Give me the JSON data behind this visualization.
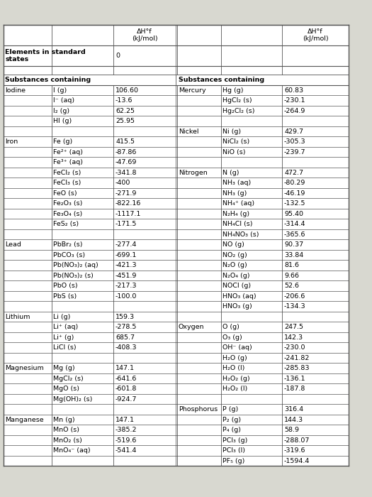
{
  "bg_color": "#d8d8d0",
  "table_bg": "#ffffff",
  "font_size": 6.8,
  "bold_font_size": 6.8,
  "left_data": [
    [
      "Iodine",
      "I (g)",
      "106.60"
    ],
    [
      "",
      "I⁻ (aq)",
      "-13.6"
    ],
    [
      "",
      "I₂ (g)",
      "62.25"
    ],
    [
      "",
      "HI (g)",
      "25.95"
    ],
    [
      "",
      "",
      ""
    ],
    [
      "Iron",
      "Fe (g)",
      "415.5"
    ],
    [
      "",
      "Fe²⁺ (aq)",
      "-87.86"
    ],
    [
      "",
      "Fe³⁺ (aq)",
      "-47.69"
    ],
    [
      "",
      "FeCl₂ (s)",
      "-341.8"
    ],
    [
      "",
      "FeCl₃ (s)",
      "-400"
    ],
    [
      "",
      "FeO (s)",
      "-271.9"
    ],
    [
      "",
      "Fe₂O₃ (s)",
      "-822.16"
    ],
    [
      "",
      "Fe₃O₄ (s)",
      "-1117.1"
    ],
    [
      "",
      "FeS₂ (s)",
      "-171.5"
    ],
    [
      "",
      "",
      ""
    ],
    [
      "Lead",
      "PbBr₂ (s)",
      "-277.4"
    ],
    [
      "",
      "PbCO₃ (s)",
      "-699.1"
    ],
    [
      "",
      "Pb(NO₃)₂ (aq)",
      "-421.3"
    ],
    [
      "",
      "Pb(NO₃)₂ (s)",
      "-451.9"
    ],
    [
      "",
      "PbO (s)",
      "-217.3"
    ],
    [
      "",
      "PbS (s)",
      "-100.0"
    ],
    [
      "",
      "",
      ""
    ],
    [
      "Lithium",
      "Li (g)",
      "159.3"
    ],
    [
      "",
      "Li⁺ (aq)",
      "-278.5"
    ],
    [
      "",
      "Li⁺ (g)",
      "685.7"
    ],
    [
      "",
      "LiCl (s)",
      "-408.3"
    ],
    [
      "",
      "",
      ""
    ],
    [
      "Magnesium",
      "Mg (g)",
      "147.1"
    ],
    [
      "",
      "MgCl₂ (s)",
      "-641.6"
    ],
    [
      "",
      "MgO (s)",
      "-601.8"
    ],
    [
      "",
      "Mg(OH)₂ (s)",
      "-924.7"
    ],
    [
      "",
      "",
      ""
    ],
    [
      "Manganese",
      "Mn (g)",
      "147.1"
    ],
    [
      "",
      "MnO (s)",
      "-385.2"
    ],
    [
      "",
      "MnO₂ (s)",
      "-519.6"
    ],
    [
      "",
      "MnO₄⁻ (aq)",
      "-541.4"
    ],
    [
      "",
      "",
      ""
    ]
  ],
  "right_data": [
    [
      "Mercury",
      "Hg (g)",
      "60.83"
    ],
    [
      "",
      "HgCl₂ (s)",
      "-230.1"
    ],
    [
      "",
      "Hg₂Cl₂ (s)",
      "-264.9"
    ],
    [
      "",
      "",
      ""
    ],
    [
      "Nickel",
      "Ni (g)",
      "429.7"
    ],
    [
      "",
      "NiCl₂ (s)",
      "-305.3"
    ],
    [
      "",
      "NiO (s)",
      "-239.7"
    ],
    [
      "",
      "",
      ""
    ],
    [
      "Nitrogen",
      "N (g)",
      "472.7"
    ],
    [
      "",
      "NH₃ (aq)",
      "-80.29"
    ],
    [
      "",
      "NH₃ (g)",
      "-46.19"
    ],
    [
      "",
      "NH₄⁺ (aq)",
      "-132.5"
    ],
    [
      "",
      "N₂H₄ (g)",
      "95.40"
    ],
    [
      "",
      "NH₄Cl (s)",
      "-314.4"
    ],
    [
      "",
      "NH₄NO₃ (s)",
      "-365.6"
    ],
    [
      "",
      "NO (g)",
      "90.37"
    ],
    [
      "",
      "NO₂ (g)",
      "33.84"
    ],
    [
      "",
      "N₂O (g)",
      "81.6"
    ],
    [
      "",
      "N₂O₄ (g)",
      "9.66"
    ],
    [
      "",
      "NOCl (g)",
      "52.6"
    ],
    [
      "",
      "HNO₃ (aq)",
      "-206.6"
    ],
    [
      "",
      "HNO₃ (g)",
      "-134.3"
    ],
    [
      "",
      "",
      ""
    ],
    [
      "Oxygen",
      "O (g)",
      "247.5"
    ],
    [
      "",
      "O₃ (g)",
      "142.3"
    ],
    [
      "",
      "OH⁻ (aq)",
      "-230.0"
    ],
    [
      "",
      "H₂O (g)",
      "-241.82"
    ],
    [
      "",
      "H₂O (l)",
      "-285.83"
    ],
    [
      "",
      "H₂O₂ (g)",
      "-136.1"
    ],
    [
      "",
      "H₂O₂ (l)",
      "-187.8"
    ],
    [
      "",
      "",
      ""
    ],
    [
      "Phosphorus",
      "P (g)",
      "316.4"
    ],
    [
      "",
      "P₂ (g)",
      "144.3"
    ],
    [
      "",
      "P₄ (g)",
      "58.9"
    ],
    [
      "",
      "PCl₃ (g)",
      "-288.07"
    ],
    [
      "",
      "PCl₃ (l)",
      "-319.6"
    ],
    [
      "",
      "PF₅ (g)",
      "-1594.4"
    ]
  ]
}
